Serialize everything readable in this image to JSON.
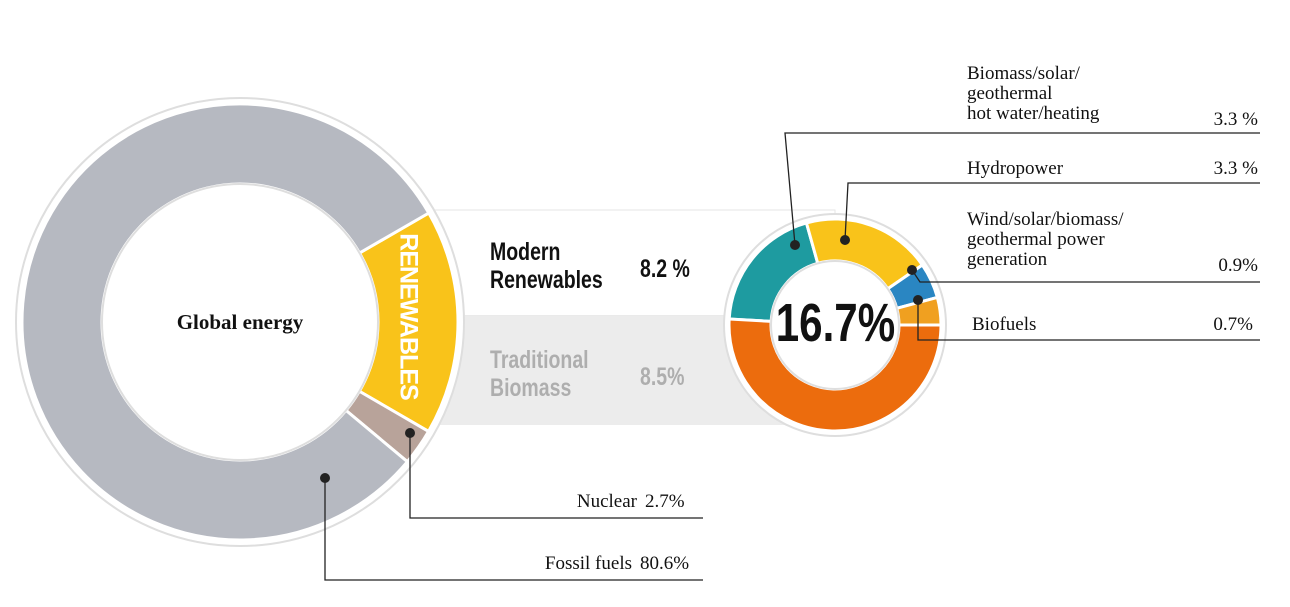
{
  "chart_data": [
    {
      "type": "donut",
      "center_label": "Global energy",
      "categories": [
        "RENEWABLES",
        "Nuclear",
        "Fossil fuels"
      ],
      "values": [
        16.7,
        2.7,
        80.6
      ],
      "value_labels": [
        "16.7%",
        "2.7%",
        "80.6%"
      ],
      "colors": [
        "#f9c31a",
        "#b8a39a",
        "#b6b9c1"
      ]
    },
    {
      "type": "donut",
      "categories": [
        "Biomass/solar/\ngeothermal\nhot water/heating",
        "Hydropower",
        "Wind/solar/biomass/\ngeothermal power\ngeneration",
        "Biofuels",
        "Traditional\nBiomass"
      ],
      "values": [
        3.3,
        3.3,
        0.9,
        0.7,
        8.5
      ],
      "value_labels": [
        "3.3 %",
        "3.3 %",
        "0.9%",
        "0.7%",
        "8.5%"
      ],
      "colors": [
        "#1e9ba0",
        "#f9c31a",
        "#2a86c2",
        "#f0a020",
        "#ec6c0d"
      ],
      "groups": [
        {
          "name": "Modern\nRenewables",
          "value": 8.2,
          "value_label": "8.2 %"
        }
      ]
    }
  ]
}
